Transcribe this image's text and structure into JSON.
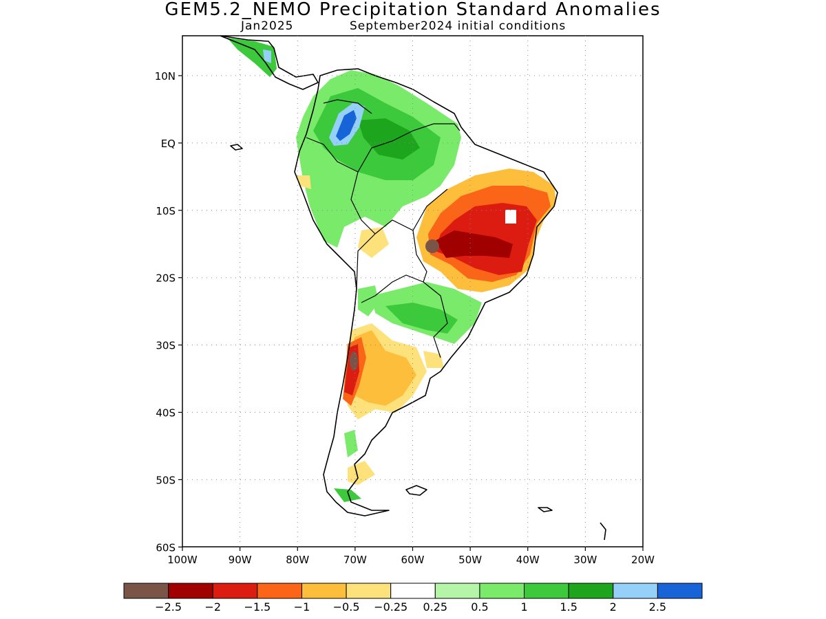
{
  "title": "GEM5.2_NEMO Precipitation Standard Anomalies",
  "subtitle_left": "Jan2025",
  "subtitle_right": "September2024 initial conditions",
  "map": {
    "region": "South America",
    "lon_range": [
      -100,
      -20
    ],
    "lat_range": [
      -60,
      15
    ],
    "grid": true,
    "y_tick_labels": [
      "10N",
      "EQ",
      "10S",
      "20S",
      "30S",
      "40S",
      "50S",
      "60S"
    ],
    "x_tick_labels": [
      "100W",
      "90W",
      "80W",
      "70W",
      "60W",
      "50W",
      "40W",
      "30W",
      "20W"
    ]
  },
  "legend": {
    "colors": [
      "#7a5547",
      "#a00000",
      "#dc1c10",
      "#fb6518",
      "#fdbe3c",
      "#fde17a",
      "#ffffff",
      "#b5f5a8",
      "#79ea6a",
      "#3cc93c",
      "#1ea51e",
      "#94d0f8",
      "#1664d8"
    ],
    "labels": [
      "−2.5",
      "−2",
      "−1.5",
      "−1",
      "−0.5",
      "−0.25",
      "0.25",
      "0.5",
      "1",
      "1.5",
      "2",
      "2.5"
    ]
  }
}
